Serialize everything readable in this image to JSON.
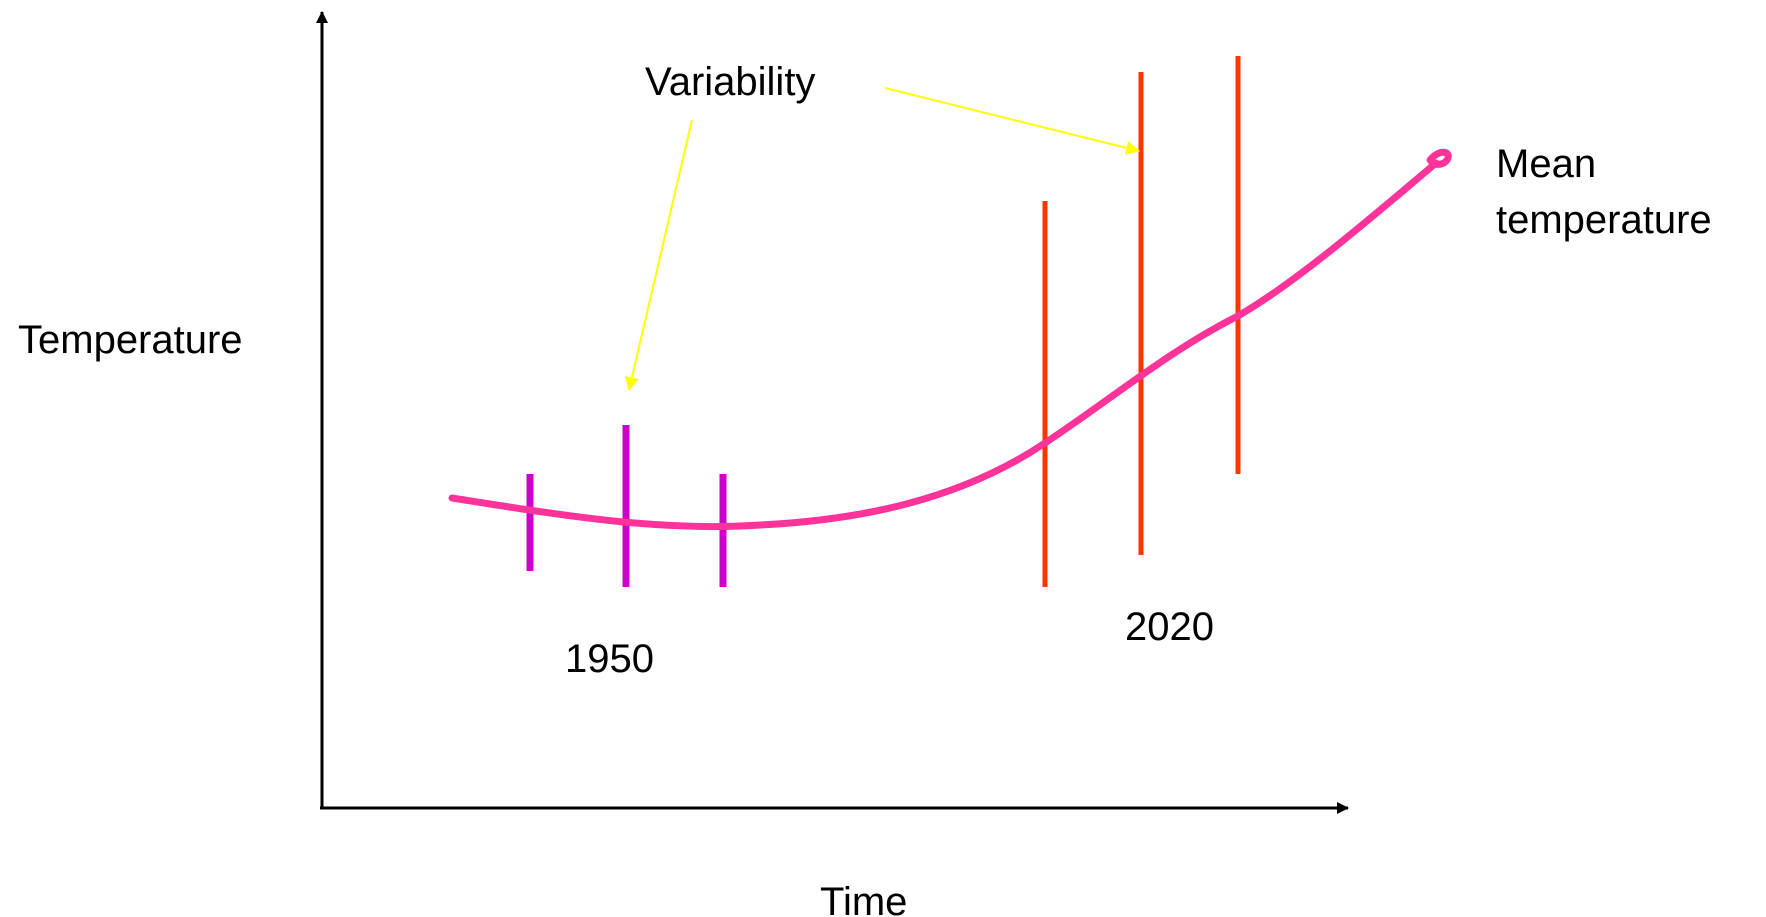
{
  "labels": {
    "y_axis": "Temperature",
    "x_axis": "Time",
    "variability": "Variability",
    "mean_line_1": "Mean",
    "mean_line_2": "temperature",
    "year_early": "1950",
    "year_late": "2020"
  },
  "colors": {
    "background": "#ffffff",
    "axes": "#000000",
    "mean_curve": "#ff3399",
    "early_bars": "#cc00cc",
    "late_bars": "#ff3300",
    "arrows": "#ffff00",
    "text": "#000000"
  }
}
